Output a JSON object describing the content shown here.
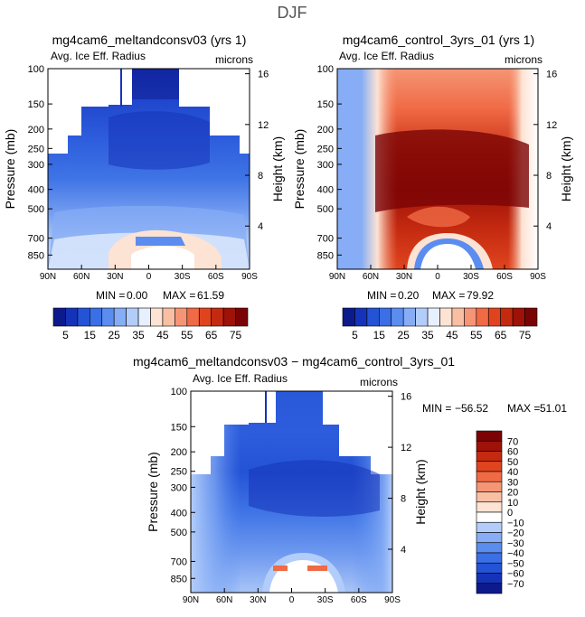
{
  "page": {
    "title": "DJF"
  },
  "panels": [
    {
      "id": "top-left",
      "title": "mg4cam6_meltandconsv03 (yrs 1)",
      "subtitle_left": "Avg. Ice Eff. Radius",
      "subtitle_right": "microns",
      "min_label": "MIN =",
      "min_value": "0.00",
      "max_label": "MAX =",
      "max_value": "61.59"
    },
    {
      "id": "top-right",
      "title": "mg4cam6_control_3yrs_01 (yrs 1)",
      "subtitle_left": "Avg. Ice Eff. Radius",
      "subtitle_right": "microns",
      "min_label": "MIN =",
      "min_value": "0.20",
      "max_label": "MAX =",
      "max_value": "79.92"
    },
    {
      "id": "bottom",
      "title": "mg4cam6_meltandconsv03 − mg4cam6_control_3yrs_01",
      "subtitle_left": "Avg. Ice Eff. Radius",
      "subtitle_right": "microns",
      "min_label": "MIN =",
      "min_value": "−56.52",
      "max_label": "MAX =",
      "max_value": "51.01"
    }
  ],
  "chart_data": [
    {
      "type": "heatmap",
      "panel": "top-left",
      "title": "mg4cam6_meltandconsv03 (yrs 1)",
      "xlabel": "",
      "ylabel_left": "Pressure (mb)",
      "ylabel_right": "Height (km)",
      "x_ticks": [
        "90N",
        "60N",
        "30N",
        "0",
        "30S",
        "60S",
        "90S"
      ],
      "x_values": [
        -90,
        -60,
        -30,
        0,
        30,
        60,
        90
      ],
      "y_ticks": [
        "100",
        "150",
        "200",
        "250",
        "300",
        "400",
        "500",
        "700",
        "850"
      ],
      "y_values": [
        100,
        150,
        200,
        250,
        300,
        400,
        500,
        700,
        850
      ],
      "height_ticks": [
        "16",
        "12",
        "8",
        "4"
      ],
      "height_values": [
        16,
        12,
        8,
        4
      ],
      "ylim": [
        100,
        1000
      ],
      "min": 0.0,
      "max": 61.59
    },
    {
      "type": "heatmap",
      "panel": "top-right",
      "title": "mg4cam6_control_3yrs_01 (yrs 1)",
      "xlabel": "",
      "ylabel_left": "Pressure (mb)",
      "ylabel_right": "Height (km)",
      "x_ticks": [
        "90N",
        "60N",
        "30N",
        "0",
        "30S",
        "60S",
        "90S"
      ],
      "x_values": [
        -90,
        -60,
        -30,
        0,
        30,
        60,
        90
      ],
      "y_ticks": [
        "100",
        "150",
        "200",
        "250",
        "300",
        "400",
        "500",
        "700",
        "850"
      ],
      "y_values": [
        100,
        150,
        200,
        250,
        300,
        400,
        500,
        700,
        850
      ],
      "height_ticks": [
        "16",
        "12",
        "8",
        "4"
      ],
      "height_values": [
        16,
        12,
        8,
        4
      ],
      "ylim": [
        100,
        1000
      ],
      "min": 0.2,
      "max": 79.92
    },
    {
      "type": "heatmap",
      "panel": "bottom",
      "title": "mg4cam6_meltandconsv03 − mg4cam6_control_3yrs_01",
      "xlabel": "",
      "ylabel_left": "Pressure (mb)",
      "ylabel_right": "Height (km)",
      "x_ticks": [
        "90N",
        "60N",
        "30N",
        "0",
        "30S",
        "60S",
        "90S"
      ],
      "x_values": [
        -90,
        -60,
        -30,
        0,
        30,
        60,
        90
      ],
      "y_ticks": [
        "100",
        "150",
        "200",
        "250",
        "300",
        "400",
        "500",
        "700",
        "850"
      ],
      "y_values": [
        100,
        150,
        200,
        250,
        300,
        400,
        500,
        700,
        850
      ],
      "height_ticks": [
        "16",
        "12",
        "8",
        "4"
      ],
      "height_values": [
        16,
        12,
        8,
        4
      ],
      "ylim": [
        100,
        1000
      ],
      "min": -56.52,
      "max": 51.01
    }
  ],
  "colorbars": {
    "top": {
      "labels": [
        "5",
        "15",
        "25",
        "35",
        "45",
        "55",
        "65",
        "75"
      ],
      "colors": [
        "#0d1a8c",
        "#1533b8",
        "#2453d6",
        "#3a6fe6",
        "#5b8df0",
        "#86adf5",
        "#b3cdfa",
        "#e6f0ff",
        "#fde3d3",
        "#f9bfa3",
        "#f59575",
        "#f06a45",
        "#e0441f",
        "#c42a10",
        "#9e1208",
        "#7a0405"
      ]
    },
    "diff": {
      "labels": [
        "70",
        "60",
        "50",
        "40",
        "30",
        "20",
        "10",
        "0",
        "−10",
        "−20",
        "−30",
        "−40",
        "−50",
        "−60",
        "−70"
      ],
      "colors": [
        "#7a0405",
        "#9e1208",
        "#c42a10",
        "#e0441f",
        "#f06a45",
        "#f59575",
        "#f9bfa3",
        "#fde3d3",
        "#ffffff",
        "#b3cdfa",
        "#86adf5",
        "#5b8df0",
        "#3a6fe6",
        "#2453d6",
        "#1533b8",
        "#0d1a8c"
      ]
    }
  }
}
